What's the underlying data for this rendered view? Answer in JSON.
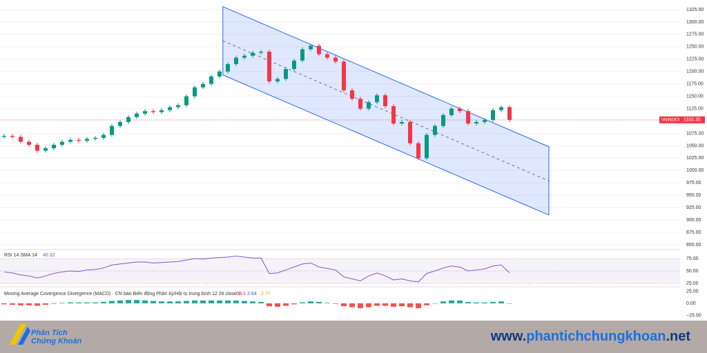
{
  "chart_data": {
    "type": "candlestick",
    "symbol": "VNINDEX",
    "last_price": {
      "value": 1102.3,
      "label": "1102.30"
    },
    "up_color": "#089981",
    "down_color": "#f23645",
    "open": [
      1068,
      1070,
      1068,
      1058,
      1052,
      1040,
      1045,
      1052,
      1058,
      1062,
      1060,
      1064,
      1066,
      1072,
      1090,
      1098,
      1108,
      1115,
      1120,
      1118,
      1122,
      1128,
      1132,
      1150,
      1168,
      1175,
      1190,
      1200,
      1215,
      1228,
      1232,
      1238,
      1240,
      1180,
      1185,
      1205,
      1222,
      1245,
      1252,
      1235,
      1228,
      1220,
      1162,
      1145,
      1125,
      1138,
      1152,
      1130,
      1095,
      1098,
      1055,
      1025,
      1072,
      1090,
      1112,
      1125,
      1120,
      1095,
      1098,
      1102,
      1122,
      1128
    ],
    "high": [
      1074,
      1074,
      1072,
      1062,
      1056,
      1049,
      1056,
      1062,
      1066,
      1066,
      1068,
      1070,
      1076,
      1094,
      1102,
      1112,
      1119,
      1124,
      1124,
      1126,
      1132,
      1136,
      1154,
      1172,
      1179,
      1194,
      1204,
      1219,
      1232,
      1236,
      1242,
      1244,
      1244,
      1189,
      1209,
      1226,
      1249,
      1256,
      1256,
      1239,
      1232,
      1224,
      1166,
      1149,
      1142,
      1156,
      1156,
      1134,
      1102,
      1102,
      1059,
      1076,
      1094,
      1116,
      1129,
      1129,
      1124,
      1102,
      1106,
      1126,
      1132,
      1132
    ],
    "low": [
      1064,
      1064,
      1054,
      1048,
      1036,
      1036,
      1041,
      1048,
      1054,
      1056,
      1056,
      1060,
      1062,
      1068,
      1086,
      1094,
      1104,
      1111,
      1114,
      1114,
      1118,
      1124,
      1128,
      1146,
      1164,
      1171,
      1186,
      1196,
      1211,
      1224,
      1228,
      1234,
      1176,
      1176,
      1181,
      1201,
      1218,
      1241,
      1231,
      1224,
      1216,
      1158,
      1141,
      1121,
      1121,
      1134,
      1126,
      1091,
      1091,
      1051,
      1021,
      1021,
      1068,
      1086,
      1108,
      1116,
      1091,
      1091,
      1094,
      1098,
      1118,
      1098
    ],
    "close": [
      1070,
      1068,
      1058,
      1052,
      1040,
      1045,
      1052,
      1058,
      1062,
      1060,
      1064,
      1066,
      1072,
      1090,
      1098,
      1108,
      1115,
      1120,
      1118,
      1122,
      1128,
      1132,
      1150,
      1168,
      1175,
      1190,
      1200,
      1215,
      1228,
      1232,
      1238,
      1240,
      1180,
      1185,
      1205,
      1222,
      1245,
      1252,
      1235,
      1228,
      1220,
      1162,
      1145,
      1125,
      1138,
      1152,
      1130,
      1095,
      1098,
      1055,
      1025,
      1072,
      1090,
      1112,
      1125,
      1120,
      1095,
      1098,
      1102,
      1122,
      1128,
      1102.3
    ],
    "ylim": [
      850,
      1325
    ],
    "yticks": [
      {
        "value": 850,
        "label": "850.00"
      },
      {
        "value": 875,
        "label": "875.00"
      },
      {
        "value": 900,
        "label": "900.00"
      },
      {
        "value": 925,
        "label": "925.00"
      },
      {
        "value": 950,
        "label": "950.00"
      },
      {
        "value": 975,
        "label": "975.00"
      },
      {
        "value": 1000,
        "label": "1000.00"
      },
      {
        "value": 1025,
        "label": "1025.00"
      },
      {
        "value": 1050,
        "label": "1050.00"
      },
      {
        "value": 1075,
        "label": "1075.00"
      },
      {
        "value": 1100,
        "label": "1100.00"
      },
      {
        "value": 1125,
        "label": "1125.00"
      },
      {
        "value": 1150,
        "label": "1150.00"
      },
      {
        "value": 1175,
        "label": "1175.00"
      },
      {
        "value": 1200,
        "label": "1200.00"
      },
      {
        "value": 1225,
        "label": "1225.00"
      },
      {
        "value": 1250,
        "label": "1250.00"
      },
      {
        "value": 1275,
        "label": "1275.00"
      },
      {
        "value": 1300,
        "label": "1300.00"
      },
      {
        "value": 1325,
        "label": "1325.00"
      }
    ],
    "channel": {
      "x": [
        26.4,
        65.75
      ],
      "upper": [
        1331,
        1048
      ],
      "lower": [
        1193,
        910
      ],
      "color": "#2962ff"
    },
    "rsi": {
      "title": "RSI 14 SMA 14",
      "color": "#7e57c2",
      "ylim": [
        25,
        75
      ],
      "yticks": [
        {
          "value": 25,
          "label": "25.00"
        },
        {
          "value": 50,
          "label": "50.00"
        },
        {
          "value": 75,
          "label": "75.00"
        }
      ],
      "values": [
        48,
        46,
        42,
        40,
        36,
        40,
        45,
        48,
        50,
        49,
        52,
        53,
        56,
        62,
        64,
        66,
        68,
        68,
        66,
        67,
        68,
        69,
        72,
        75,
        74,
        76,
        77,
        78,
        80,
        78,
        76,
        76,
        45,
        46,
        52,
        58,
        64,
        66,
        58,
        55,
        52,
        38,
        34,
        30,
        40,
        46,
        40,
        32,
        34,
        30,
        28,
        45,
        50,
        56,
        60,
        58,
        50,
        52,
        54,
        60,
        62,
        46.32
      ]
    },
    "macd": {
      "title": "Moving Average Covergence Divergence (MACD) · Chỉ báo Biến động Phân kỳ/Hội tụ trung bình 12 26 close 9",
      "readout": [
        -0.13,
        2.64,
        2.77
      ],
      "readout_labels": [
        "−0.13",
        "2.64",
        "2.77"
      ],
      "readout_colors": [
        "#f23645",
        "#2962ff",
        "#ff9800"
      ],
      "ylim": [
        -25,
        25
      ],
      "yticks": [
        {
          "value": -25,
          "label": "−25.00"
        },
        {
          "value": 0,
          "label": "0.00"
        },
        {
          "value": 25,
          "label": "25.00"
        }
      ],
      "histogram": [
        -2,
        -3,
        -4,
        -4,
        -5,
        -3,
        -1,
        1,
        2,
        2,
        2,
        2,
        3,
        5,
        6,
        7,
        7,
        6,
        5,
        4,
        4,
        4,
        5,
        6,
        6,
        6,
        6,
        6,
        6,
        5,
        4,
        3,
        -6,
        -7,
        -5,
        -2,
        2,
        4,
        3,
        1,
        -1,
        -6,
        -8,
        -10,
        -8,
        -5,
        -5,
        -7,
        -6,
        -8,
        -10,
        -4,
        0,
        4,
        6,
        6,
        3,
        2,
        2,
        3,
        4,
        -0.13
      ]
    }
  },
  "footer": {
    "brand": [
      "Phân Tích",
      "Chứng Khoán"
    ],
    "url": [
      "www.",
      "phantichchungkhoan",
      ".net"
    ]
  }
}
